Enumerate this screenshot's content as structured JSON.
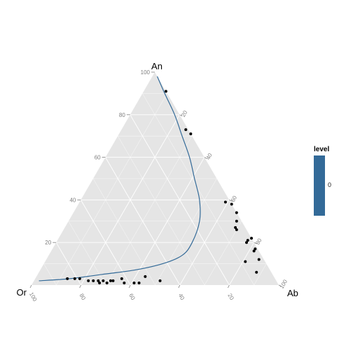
{
  "chart_data": {
    "type": "scatter",
    "title": "",
    "vertices": {
      "top": "An",
      "left": "Or",
      "right": "Ab"
    },
    "ticks": {
      "An": [
        "20",
        "40",
        "60",
        "80",
        "100"
      ],
      "Ab": [
        "20",
        "40",
        "60",
        "80",
        "100"
      ],
      "Or": [
        "20",
        "40",
        "60",
        "80",
        "100"
      ]
    },
    "points": [
      {
        "An": 91,
        "Ab": 9,
        "Or": 0
      },
      {
        "An": 73,
        "Ab": 26,
        "Or": 1
      },
      {
        "An": 71,
        "Ab": 29,
        "Or": 0
      },
      {
        "An": 39,
        "Ab": 59,
        "Or": 2
      },
      {
        "An": 38,
        "Ab": 62,
        "Or": 0
      },
      {
        "An": 34,
        "Ab": 66,
        "Or": 0
      },
      {
        "An": 30,
        "Ab": 68,
        "Or": 2
      },
      {
        "An": 27,
        "Ab": 69,
        "Or": 4
      },
      {
        "An": 26,
        "Ab": 70,
        "Or": 4
      },
      {
        "An": 22,
        "Ab": 78,
        "Or": 0
      },
      {
        "An": 21,
        "Ab": 77,
        "Or": 2
      },
      {
        "An": 20,
        "Ab": 77,
        "Or": 3
      },
      {
        "An": 17,
        "Ab": 82,
        "Or": 1
      },
      {
        "An": 16,
        "Ab": 82,
        "Or": 2
      },
      {
        "An": 12,
        "Ab": 86,
        "Or": 2
      },
      {
        "An": 11,
        "Ab": 81,
        "Or": 8
      },
      {
        "An": 6,
        "Ab": 88,
        "Or": 6
      },
      {
        "An": 3,
        "Ab": 13,
        "Or": 84
      },
      {
        "An": 3,
        "Ab": 16,
        "Or": 81
      },
      {
        "An": 3,
        "Ab": 18,
        "Or": 79
      },
      {
        "An": 2,
        "Ab": 22,
        "Or": 76
      },
      {
        "An": 2,
        "Ab": 24,
        "Or": 74
      },
      {
        "An": 2,
        "Ab": 26,
        "Or": 72
      },
      {
        "An": 1,
        "Ab": 27,
        "Or": 72
      },
      {
        "An": 2,
        "Ab": 28,
        "Or": 70
      },
      {
        "An": 1,
        "Ab": 30,
        "Or": 69
      },
      {
        "An": 2,
        "Ab": 31,
        "Or": 67
      },
      {
        "An": 2,
        "Ab": 32,
        "Or": 66
      },
      {
        "An": 3,
        "Ab": 35,
        "Or": 62
      },
      {
        "An": 1,
        "Ab": 37,
        "Or": 62
      },
      {
        "An": 1,
        "Ab": 41,
        "Or": 58
      },
      {
        "An": 1,
        "Ab": 43,
        "Or": 56
      },
      {
        "An": 4,
        "Ab": 44,
        "Or": 52
      },
      {
        "An": 2,
        "Ab": 51,
        "Or": 47
      }
    ],
    "contour": {
      "level": "0",
      "color": "#336a98",
      "points": [
        {
          "An": 98,
          "Ab": 2,
          "Or": 0
        },
        {
          "An": 90,
          "Ab": 9,
          "Or": 1
        },
        {
          "An": 80,
          "Ab": 18,
          "Or": 2
        },
        {
          "An": 70,
          "Ab": 26,
          "Or": 4
        },
        {
          "An": 60,
          "Ab": 34,
          "Or": 6
        },
        {
          "An": 50,
          "Ab": 41,
          "Or": 9
        },
        {
          "An": 40,
          "Ab": 48,
          "Or": 12
        },
        {
          "An": 30,
          "Ab": 53,
          "Or": 17
        },
        {
          "An": 20,
          "Ab": 55,
          "Or": 25
        },
        {
          "An": 14,
          "Ab": 54,
          "Or": 32
        },
        {
          "An": 10,
          "Ab": 48,
          "Or": 42
        },
        {
          "An": 7,
          "Ab": 38,
          "Or": 55
        },
        {
          "An": 5,
          "Ab": 26,
          "Or": 69
        },
        {
          "An": 3,
          "Ab": 14,
          "Or": 83
        },
        {
          "An": 2,
          "Ab": 2,
          "Or": 96
        }
      ]
    },
    "legend": {
      "title": "level",
      "entries": [
        {
          "label": "0",
          "color": "#336a98"
        }
      ],
      "position": "right"
    },
    "grid": true
  }
}
